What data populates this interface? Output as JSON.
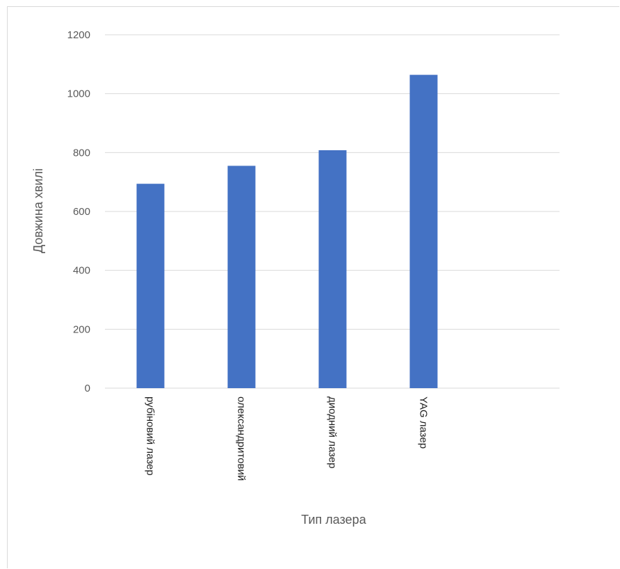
{
  "chart_data": {
    "type": "bar",
    "categories": [
      "рубіновий лазер",
      "олександритовий",
      "диодний лазер",
      "YAG лазер"
    ],
    "values": [
      694,
      755,
      808,
      1064
    ],
    "xlabel": "Тип лазера",
    "ylabel": "Довжина хвилі",
    "ylim": [
      0,
      1200
    ],
    "yticks": [
      0,
      200,
      400,
      600,
      800,
      1000,
      1200
    ],
    "grid": true,
    "legend": "none",
    "colors": {
      "bar": "#4472c4",
      "grid": "#d9d9d9",
      "axis_text": "#595959"
    }
  }
}
